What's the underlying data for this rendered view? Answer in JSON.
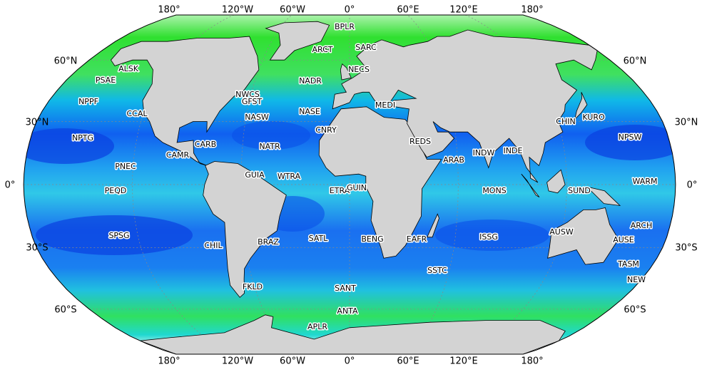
{
  "map": {
    "longitude_labels": [
      "180°",
      "120°W",
      "60°W",
      "0°",
      "60°E",
      "120°E",
      "180°"
    ],
    "latitude_labels": [
      "60°N",
      "30°N",
      "0°",
      "30°S",
      "60°S"
    ],
    "provinces": [
      "BPLR",
      "ARCT",
      "SARC",
      "NECS",
      "ALSK",
      "PSAE",
      "NADR",
      "NWCS",
      "GFST",
      "NPPF",
      "CCAL",
      "MEDI",
      "NASE",
      "NASW",
      "CHIN",
      "KURO",
      "NPSW",
      "NPTG",
      "CNRY",
      "REDS",
      "NATR",
      "CARB",
      "CAMR",
      "INDW",
      "INDE",
      "ARAB",
      "PNEC",
      "GUIA",
      "WTRA",
      "WARM",
      "PEQD",
      "ETRA",
      "GUIN",
      "MONS",
      "SUND",
      "ARCH",
      "SPSG",
      "CHIL",
      "BRAZ",
      "SATL",
      "BENG",
      "EAFR",
      "ISSG",
      "AUSW",
      "AUSE",
      "TASM",
      "SSTC",
      "NEW",
      "FKLD",
      "SANT",
      "ANTA",
      "APLR"
    ]
  }
}
